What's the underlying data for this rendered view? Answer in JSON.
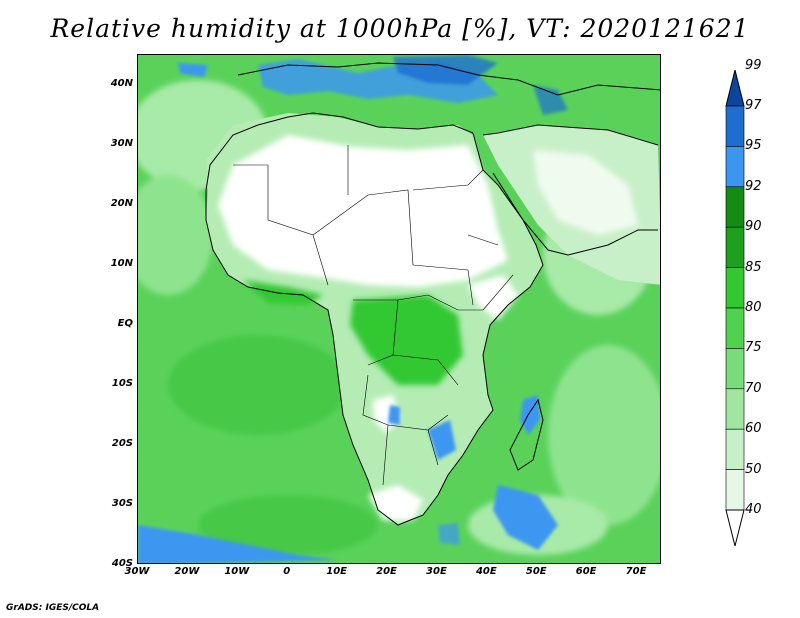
{
  "title": "Relative humidity at 1000hPa [%], VT: 2020121621",
  "credit": "GrADS: IGES/COLA",
  "axes": {
    "lat_labels": [
      "40N",
      "30N",
      "20N",
      "10N",
      "EQ",
      "10S",
      "20S",
      "30S",
      "40S"
    ],
    "lat_values": [
      40,
      30,
      20,
      10,
      0,
      -10,
      -20,
      -30,
      -40
    ],
    "lon_labels": [
      "30W",
      "20W",
      "10W",
      "0",
      "10E",
      "20E",
      "30E",
      "40E",
      "50E",
      "60E",
      "70E"
    ],
    "lon_values": [
      -30,
      -20,
      -10,
      0,
      10,
      20,
      30,
      40,
      50,
      60,
      70
    ],
    "lon_range": [
      -30,
      75
    ],
    "lat_range": [
      -40,
      45
    ]
  },
  "colorbar": {
    "levels": [
      "40",
      "50",
      "60",
      "70",
      "75",
      "80",
      "85",
      "90",
      "92",
      "95",
      "97",
      "99"
    ],
    "colors": [
      "#ffffff",
      "#e6f7e6",
      "#c8f0c8",
      "#a0e6a0",
      "#78dc78",
      "#50d250",
      "#32c832",
      "#1ea01e",
      "#148c14",
      "#3c96f0",
      "#1e6ed2",
      "#0a46a0"
    ],
    "extend": "both"
  },
  "colors": {
    "ocean_base": "#5ad25a",
    "land_dry": "#ffffff",
    "land_mid": "#b4ecb4",
    "wet": "#3278e6",
    "border": "#000000"
  }
}
